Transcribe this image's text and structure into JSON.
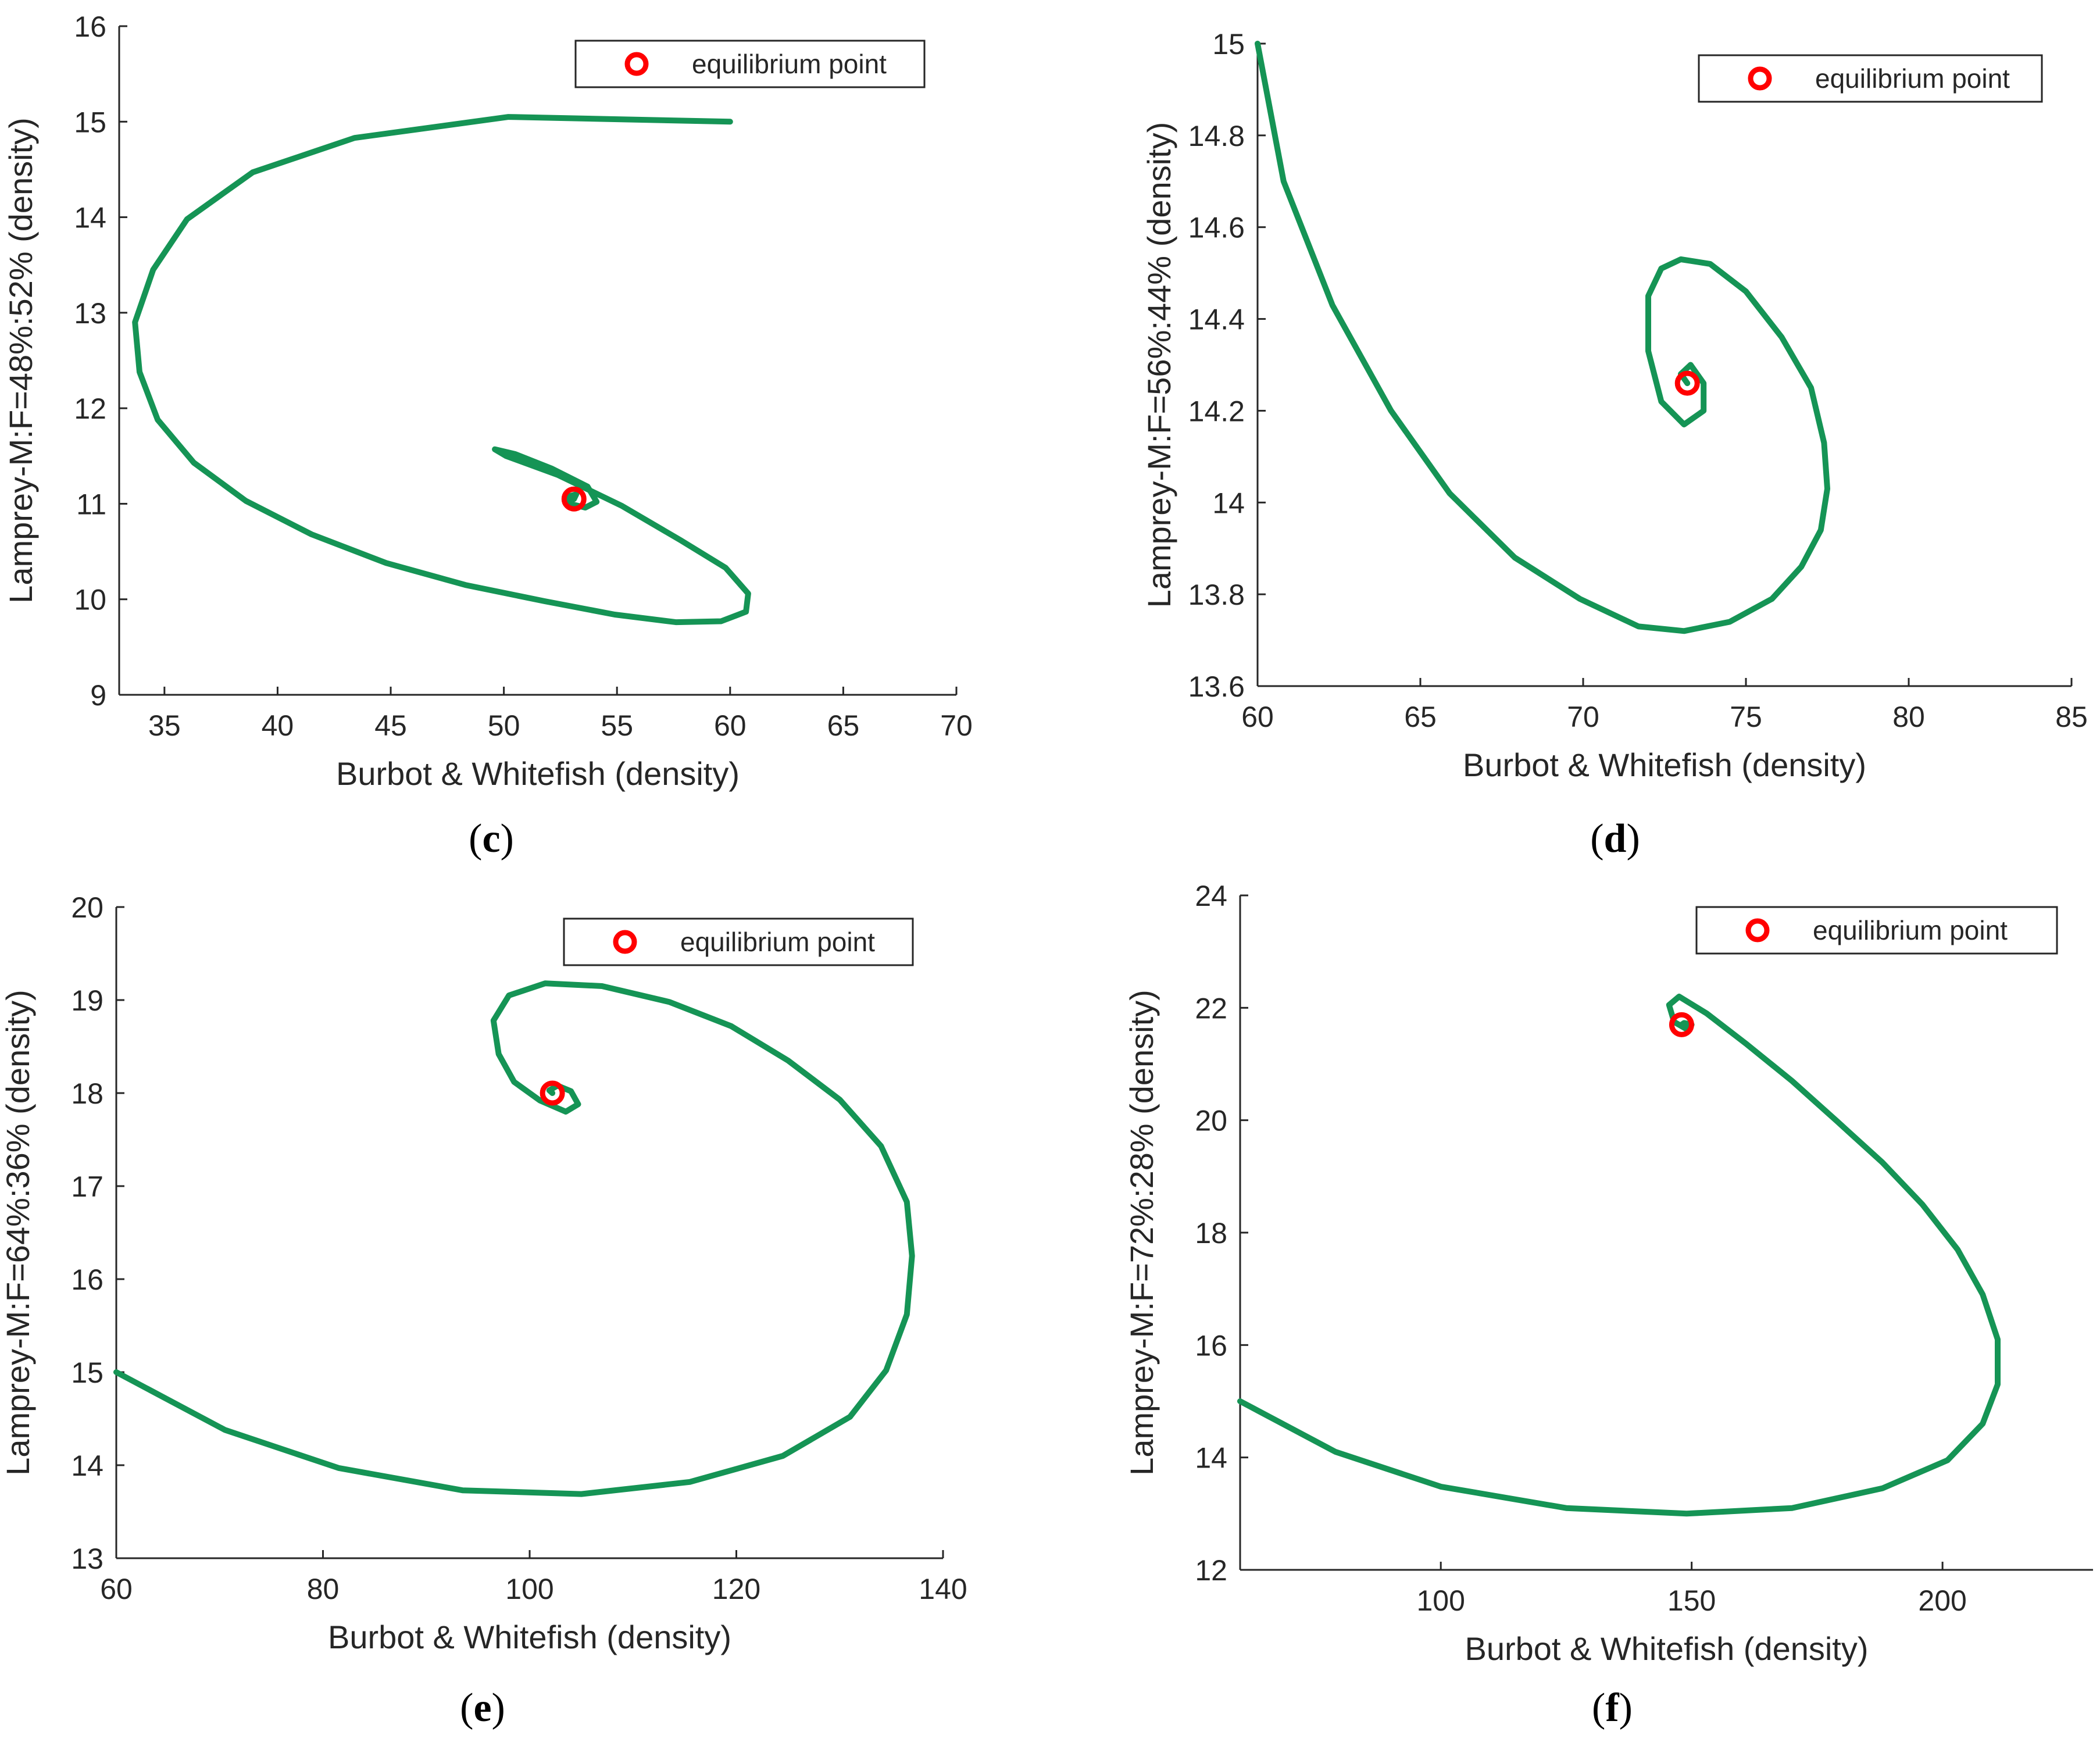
{
  "figure": {
    "line_color": "#159455",
    "marker_color": "#ff0000"
  },
  "chart_data": [
    {
      "id": "c",
      "type": "line",
      "panel_label": "c",
      "xlabel": "Burbot & Whitefish (density)",
      "ylabel": "Lamprey-M:F=48%:52% (density)",
      "xlim": [
        33,
        70
      ],
      "ylim": [
        9,
        16
      ],
      "xticks": [
        35,
        40,
        45,
        50,
        55,
        60,
        65,
        70
      ],
      "yticks": [
        9,
        10,
        11,
        12,
        13,
        14,
        15,
        16
      ],
      "legend": {
        "label": "equilibrium point",
        "position": "top-right"
      },
      "equilibrium": {
        "x": 53.1,
        "y": 11.05
      },
      "series": [
        {
          "name": "trajectory",
          "x": [
            60,
            50.2,
            43.4,
            38.9,
            36.0,
            34.5,
            33.7,
            33.9,
            34.7,
            36.3,
            38.6,
            41.5,
            44.8,
            48.3,
            51.8,
            54.9,
            57.6,
            59.6,
            60.7,
            60.8,
            59.8,
            57.8,
            55.2,
            52.4,
            50.1,
            49.6,
            50.5,
            52.1,
            53.7,
            54.1,
            53.6,
            52.9,
            52.9,
            53.2,
            53.1
          ],
          "y": [
            15.0,
            15.05,
            14.83,
            14.47,
            13.98,
            13.45,
            12.9,
            12.38,
            11.88,
            11.43,
            11.03,
            10.68,
            10.38,
            10.15,
            9.98,
            9.84,
            9.76,
            9.77,
            9.87,
            10.06,
            10.33,
            10.62,
            10.98,
            11.3,
            11.5,
            11.57,
            11.52,
            11.37,
            11.18,
            11.02,
            10.96,
            11.0,
            11.08,
            11.1,
            11.05
          ]
        }
      ]
    },
    {
      "id": "d",
      "type": "line",
      "panel_label": "d",
      "xlabel": "Burbot & Whitefish (density)",
      "ylabel": "Lamprey-M:F=56%:44% (density)",
      "xlim": [
        60,
        85
      ],
      "ylim": [
        13.6,
        15
      ],
      "xticks": [
        60,
        65,
        70,
        75,
        80,
        85
      ],
      "yticks": [
        13.6,
        13.8,
        14,
        14.2,
        14.4,
        14.6,
        14.8,
        15
      ],
      "legend": {
        "label": "equilibrium point",
        "position": "top-right"
      },
      "equilibrium": {
        "x": 73.2,
        "y": 14.26
      },
      "series": [
        {
          "name": "trajectory",
          "x": [
            60,
            60.8,
            62.3,
            64.1,
            65.9,
            67.9,
            69.9,
            71.7,
            73.1,
            74.5,
            75.8,
            76.7,
            77.3,
            77.5,
            77.4,
            77.0,
            76.1,
            75.0,
            73.9,
            73.0,
            72.4,
            72.0,
            72.0,
            72.4,
            73.1,
            73.7,
            73.7,
            73.3,
            73.0,
            73.2
          ],
          "y": [
            15.0,
            14.7,
            14.43,
            14.2,
            14.02,
            13.88,
            13.79,
            13.73,
            13.72,
            13.74,
            13.79,
            13.86,
            13.94,
            14.03,
            14.13,
            14.25,
            14.36,
            14.46,
            14.52,
            14.53,
            14.51,
            14.45,
            14.33,
            14.22,
            14.17,
            14.2,
            14.26,
            14.3,
            14.28,
            14.26
          ]
        }
      ]
    },
    {
      "id": "e",
      "type": "line",
      "panel_label": "e",
      "xlabel": "Burbot & Whitefish (density)",
      "ylabel": "Lamprey-M:F=64%:36% (density)",
      "xlim": [
        60,
        140
      ],
      "ylim": [
        13,
        20
      ],
      "xticks": [
        60,
        80,
        100,
        120,
        140
      ],
      "yticks": [
        13,
        14,
        15,
        16,
        17,
        18,
        19,
        20
      ],
      "legend": {
        "label": "equilibrium point",
        "position": "top-right"
      },
      "equilibrium": {
        "x": 102.2,
        "y": 18.0
      },
      "series": [
        {
          "name": "trajectory",
          "x": [
            60,
            70.5,
            81.5,
            93.5,
            105.0,
            115.5,
            124.5,
            131.0,
            134.5,
            136.5,
            137.0,
            136.5,
            134.0,
            130.0,
            125.0,
            119.5,
            113.5,
            107.0,
            101.5,
            98.0,
            96.5,
            97.0,
            98.5,
            101.0,
            103.5,
            104.7,
            104.0,
            102.7,
            101.9,
            102.2
          ],
          "y": [
            15.0,
            14.38,
            13.97,
            13.73,
            13.69,
            13.82,
            14.1,
            14.52,
            15.02,
            15.62,
            16.25,
            16.83,
            17.43,
            17.93,
            18.35,
            18.72,
            18.98,
            19.15,
            19.18,
            19.05,
            18.78,
            18.42,
            18.12,
            17.92,
            17.8,
            17.88,
            18.02,
            18.08,
            18.03,
            18.0
          ]
        }
      ]
    },
    {
      "id": "f",
      "type": "line",
      "panel_label": "f",
      "xlabel": "Burbot & Whitefish (density)",
      "ylabel": "Lamprey-M:F=72%:28% (density)",
      "xlim": [
        60,
        230
      ],
      "ylim": [
        12,
        24
      ],
      "xticks": [
        100,
        150,
        200
      ],
      "yticks": [
        12,
        14,
        16,
        18,
        20,
        22,
        24
      ],
      "legend": {
        "label": "equilibrium point",
        "position": "top-right"
      },
      "equilibrium": {
        "x": 148.0,
        "y": 21.7
      },
      "series": [
        {
          "name": "trajectory",
          "x": [
            60,
            79,
            100,
            125,
            149,
            170,
            188,
            201,
            208,
            211,
            211,
            208,
            203,
            196,
            188,
            179,
            170,
            161,
            153,
            147.5,
            145.5,
            146.5,
            149,
            150,
            148.5,
            148
          ],
          "y": [
            15.0,
            14.1,
            13.48,
            13.1,
            13.0,
            13.1,
            13.45,
            13.95,
            14.6,
            15.3,
            16.1,
            16.9,
            17.7,
            18.5,
            19.25,
            19.98,
            20.7,
            21.35,
            21.9,
            22.2,
            22.05,
            21.75,
            21.62,
            21.7,
            21.73,
            21.7
          ]
        }
      ]
    }
  ]
}
